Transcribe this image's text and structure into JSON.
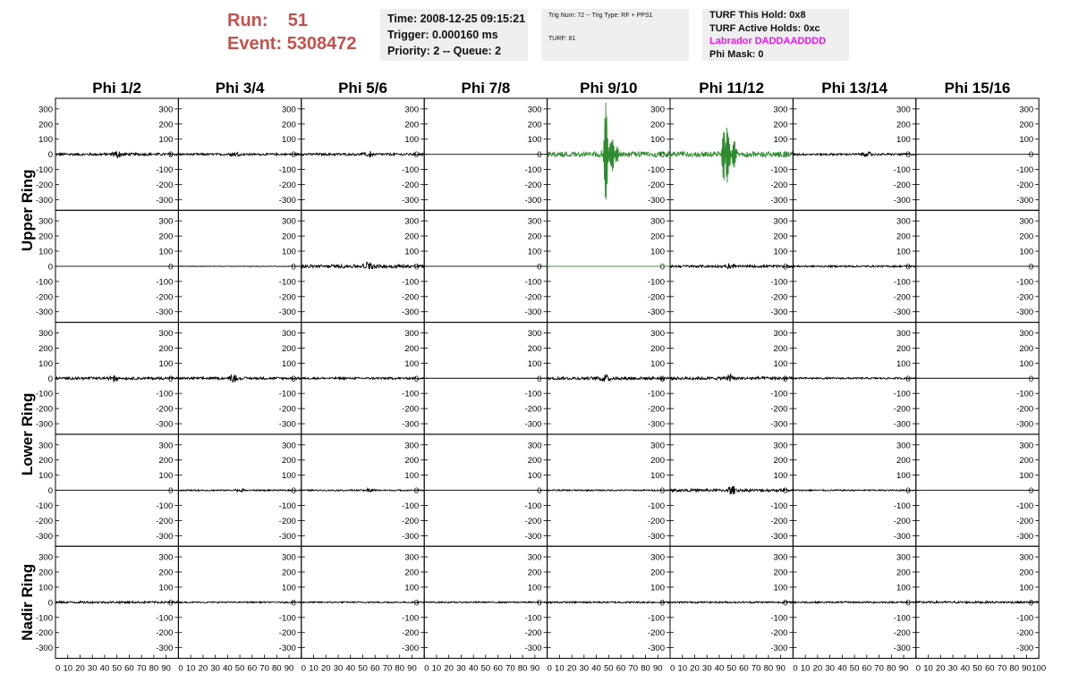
{
  "header": {
    "run_label": "Run:",
    "run_value": "51",
    "event_label": "Event:",
    "event_value": "5308472"
  },
  "info_box": {
    "time": "Time: 2008-12-25 09:15:21",
    "trigger": "Trigger: 0.000160 ms",
    "priority": "Priority: 2 -- Queue: 2"
  },
  "trig_box": {
    "trig": "Trig Num: 72 -- Trig Type: RF + PPS1",
    "turf": "TURF: 81"
  },
  "turf_box": {
    "hold": "TURF This Hold: 0x8",
    "active": "TURF Active Holds: 0xc",
    "labrador": "Labrador DADDAADDDD",
    "phi_mask": "Phi Mask: 0"
  },
  "colors": {
    "run": "#c8504a",
    "triggered_trace": "#2e8b2e",
    "trace": "#000000",
    "labrador": "#e020e0",
    "box_bg": "#efefef"
  },
  "chart_data": {
    "type": "line",
    "columns": [
      "Phi 1/2",
      "Phi 3/4",
      "Phi 5/6",
      "Phi 7/8",
      "Phi 9/10",
      "Phi 11/12",
      "Phi 13/14",
      "Phi 15/16"
    ],
    "rows": [
      "Upper Ring",
      "Upper Ring",
      "Lower Ring",
      "Lower Ring",
      "Nadir Ring"
    ],
    "row_labels": [
      "Upper Ring",
      "Lower Ring",
      "Nadir Ring"
    ],
    "y_ticks": [
      "300",
      "200",
      "100",
      "0",
      "-100",
      "-200",
      "-300"
    ],
    "x_ticks": [
      "0",
      "10",
      "20",
      "30",
      "40",
      "50",
      "60",
      "70",
      "80",
      "90",
      "100"
    ],
    "x_range": [
      0,
      100
    ],
    "y_range": [
      -370,
      370
    ],
    "amplitudes": [
      [
        15,
        12,
        14,
        0,
        330,
        320,
        12,
        0
      ],
      [
        0,
        3,
        20,
        0,
        0,
        14,
        10,
        0
      ],
      [
        15,
        14,
        12,
        0,
        18,
        18,
        10,
        0
      ],
      [
        0,
        8,
        8,
        0,
        8,
        16,
        8,
        0
      ],
      [
        12,
        8,
        8,
        8,
        10,
        10,
        10,
        12
      ]
    ],
    "pulse_centers": [
      [
        50,
        45,
        55,
        null,
        48,
        45,
        60,
        null
      ],
      [
        null,
        null,
        55,
        null,
        null,
        50,
        null,
        null
      ],
      [
        48,
        45,
        null,
        null,
        48,
        50,
        null,
        null
      ],
      [
        null,
        50,
        55,
        null,
        null,
        50,
        null,
        null
      ],
      [
        null,
        null,
        null,
        null,
        null,
        null,
        null,
        null
      ]
    ],
    "green_cells": [
      [
        0,
        4
      ],
      [
        0,
        5
      ],
      [
        1,
        4
      ]
    ]
  }
}
